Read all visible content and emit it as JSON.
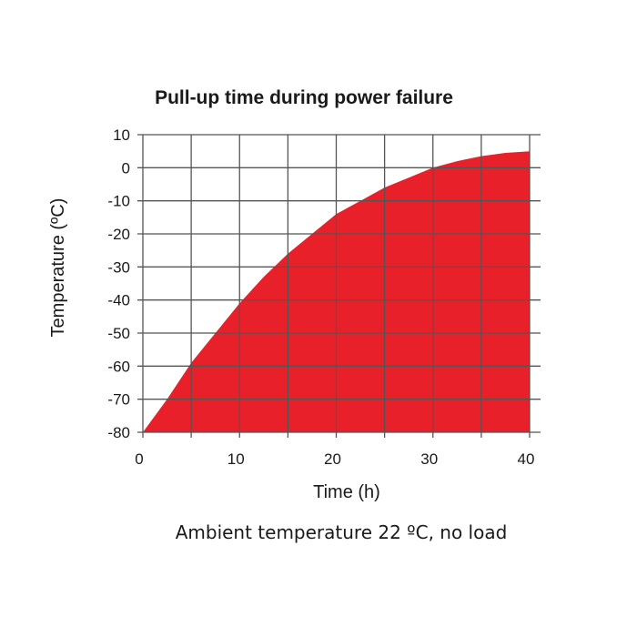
{
  "chart_data": {
    "type": "area",
    "title": "Pull-up time during power failure",
    "xlabel": "Time (h)",
    "ylabel": "Temperature (ºC)",
    "caption": "Ambient temperature 22 ºC, no load",
    "xlim": [
      0,
      40
    ],
    "ylim": [
      -80,
      10
    ],
    "xticks": [
      0,
      10,
      20,
      30,
      40
    ],
    "yticks": [
      10,
      0,
      -10,
      -20,
      -30,
      -40,
      -50,
      -60,
      -70,
      -80
    ],
    "x_grid_step": 5,
    "grid": true,
    "fill_color": "#e8202a",
    "grid_color": "#555555",
    "series": [
      {
        "x": [
          0,
          2.5,
          5,
          7.5,
          10,
          12.5,
          15,
          17.5,
          20,
          22.5,
          25,
          27.5,
          30,
          32.5,
          35,
          37.5,
          40
        ],
        "y": [
          -80,
          -70,
          -59,
          -50,
          -41,
          -33,
          -26,
          -20,
          -14,
          -10,
          -6,
          -3,
          0,
          2,
          3.5,
          4.5,
          5
        ]
      }
    ]
  }
}
